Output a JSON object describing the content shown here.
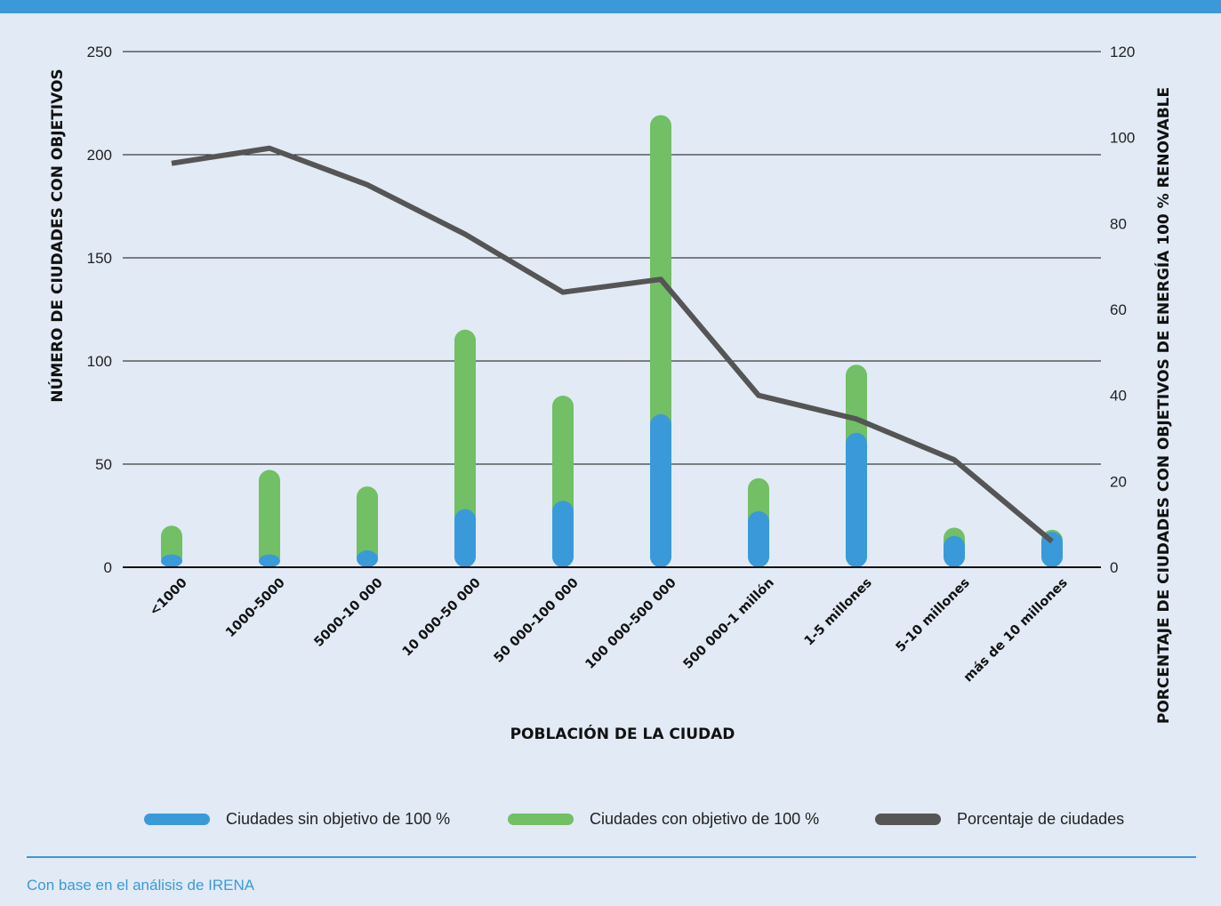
{
  "chart_data": {
    "type": "bar",
    "stacked": true,
    "xlabel": "POBLACIÓN DE LA CIUDAD",
    "ylabel": "NÚMERO DE CIUDADES CON OBJETIVOS",
    "y2label": "PORCENTAJE DE CIUDADES CON OBJETIVOS DE ENERGÍA 100 % RENOVABLE",
    "ylim": [
      0,
      250
    ],
    "y2lim": [
      0,
      120
    ],
    "yticks": [
      0,
      50,
      100,
      150,
      200,
      250
    ],
    "y2ticks": [
      0,
      20,
      40,
      60,
      80,
      100,
      120
    ],
    "grid": true,
    "categories": [
      "<1000",
      "1000-5000",
      "5000-10 000",
      "10 000-50 000",
      "50 000-100 000",
      "100 000-500 000",
      "500 000-1 millón",
      "1-5 millones",
      "5-10 millones",
      "más de 10 millones"
    ],
    "series": [
      {
        "name": "Ciudades sin objetivo de 100 %",
        "type": "bar",
        "axis": "left",
        "color": "#3a9ad9",
        "values": [
          1,
          1,
          3,
          23,
          27,
          69,
          22,
          60,
          10,
          12
        ]
      },
      {
        "name": "Ciudades con objetivo de 100 %",
        "type": "bar",
        "axis": "left",
        "color": "#72bf65",
        "values": [
          14,
          41,
          31,
          87,
          51,
          145,
          16,
          33,
          4,
          1
        ]
      },
      {
        "name": "Porcentaje de ciudades",
        "type": "line",
        "axis": "right",
        "color": "#555555",
        "values": [
          94,
          97.5,
          89,
          77.5,
          64,
          67,
          40,
          34.5,
          25,
          6
        ]
      }
    ],
    "legend_position": "bottom"
  },
  "source": "Con base en el análisis de IRENA"
}
